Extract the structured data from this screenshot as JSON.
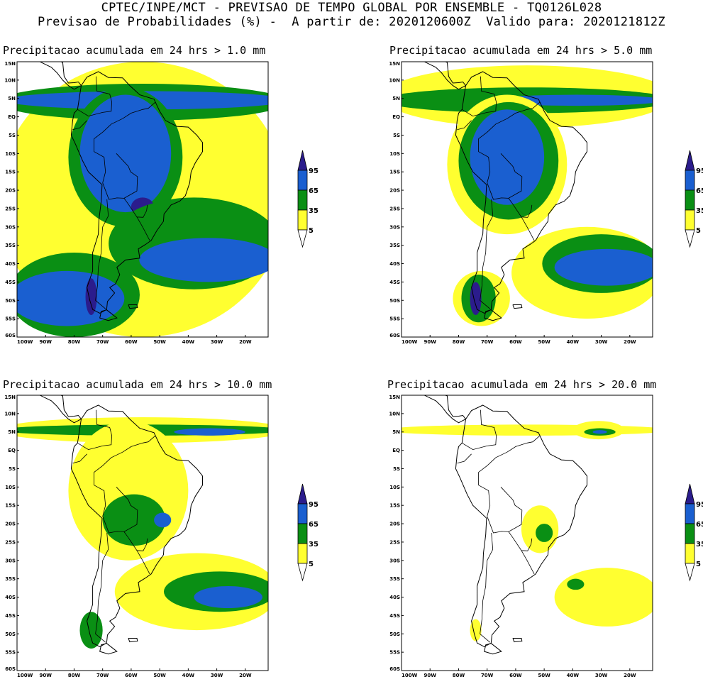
{
  "header": {
    "line1": "CPTEC/INPE/MCT - PREVISAO DE TEMPO GLOBAL POR ENSEMBLE - TQ0126L028",
    "line2": "Previsao de Probabilidades (%) -  A partir de: 2020120600Z  Valido para: 2020121812Z"
  },
  "colors": {
    "c5": "#ffff30",
    "c35": "#0a8f14",
    "c65": "#1a5fd0",
    "c95": "#2b1c8c",
    "land": "#000000"
  },
  "chart_data": [
    {
      "type": "heatmap",
      "title": "Precipitacao acumulada em 24 hrs > 1.0 mm",
      "threshold_mm": 1.0,
      "xlim": [
        -100,
        -12
      ],
      "ylim": [
        -60,
        15
      ],
      "x_ticks": [
        "100W",
        "90W",
        "80W",
        "70W",
        "60W",
        "50W",
        "40W",
        "30W",
        "20W"
      ],
      "y_ticks": [
        "15N",
        "10N",
        "5N",
        "EQ",
        "5S",
        "10S",
        "15S",
        "20S",
        "25S",
        "30S",
        "35S",
        "40S",
        "45S",
        "50S",
        "55S",
        "60S"
      ],
      "legend": [
        "5",
        "35",
        "65",
        "95"
      ],
      "regions": [
        {
          "level": 5,
          "lon": [
            -100,
            -12
          ],
          "lat": [
            -60,
            15
          ]
        },
        {
          "level": 35,
          "lon": [
            -100,
            -12
          ],
          "lat": [
            -1,
            9
          ]
        },
        {
          "level": 65,
          "lon": [
            -98,
            -12
          ],
          "lat": [
            2,
            7
          ]
        },
        {
          "level": 35,
          "lon": [
            -82,
            -42
          ],
          "lat": [
            -30,
            8
          ]
        },
        {
          "level": 65,
          "lon": [
            -78,
            -46
          ],
          "lat": [
            -26,
            6
          ]
        },
        {
          "level": 95,
          "lon": [
            -60,
            -52
          ],
          "lat": [
            -27,
            -22
          ]
        },
        {
          "level": 35,
          "lon": [
            -64,
            -12
          ],
          "lat": [
            -47,
            -22
          ]
        },
        {
          "level": 65,
          "lon": [
            -54,
            -12
          ],
          "lat": [
            -45,
            -33
          ]
        },
        {
          "level": 35,
          "lon": [
            -100,
            -60
          ],
          "lat": [
            -60,
            -37
          ]
        },
        {
          "level": 65,
          "lon": [
            -100,
            -65
          ],
          "lat": [
            -57,
            -42
          ]
        },
        {
          "level": 95,
          "lon": [
            -76,
            -72
          ],
          "lat": [
            -54,
            -44
          ]
        }
      ]
    },
    {
      "type": "heatmap",
      "title": "Precipitacao acumulada em 24 hrs > 5.0 mm",
      "threshold_mm": 5.0,
      "xlim": [
        -100,
        -12
      ],
      "ylim": [
        -60,
        15
      ],
      "x_ticks": [
        "100W",
        "90W",
        "80W",
        "70W",
        "60W",
        "50W",
        "40W",
        "30W",
        "20W"
      ],
      "y_ticks": [
        "15N",
        "10N",
        "5N",
        "EQ",
        "5S",
        "10S",
        "15S",
        "20S",
        "25S",
        "30S",
        "35S",
        "40S",
        "45S",
        "50S",
        "55S",
        "60S"
      ],
      "legend": [
        "5",
        "35",
        "65",
        "95"
      ],
      "regions": [
        {
          "level": 5,
          "lon": [
            -100,
            -12
          ],
          "lat": [
            -3,
            14
          ]
        },
        {
          "level": 35,
          "lon": [
            -100,
            -12
          ],
          "lat": [
            1,
            8
          ]
        },
        {
          "level": 65,
          "lon": [
            -65,
            -12
          ],
          "lat": [
            3,
            6
          ]
        },
        {
          "level": 5,
          "lon": [
            -84,
            -42
          ],
          "lat": [
            -32,
            6
          ]
        },
        {
          "level": 35,
          "lon": [
            -80,
            -45
          ],
          "lat": [
            -28,
            4
          ]
        },
        {
          "level": 65,
          "lon": [
            -76,
            -50
          ],
          "lat": [
            -24,
            2
          ]
        },
        {
          "level": 5,
          "lon": [
            -58,
            -12
          ],
          "lat": [
            -55,
            -30
          ]
        },
        {
          "level": 35,
          "lon": [
            -48,
            -12
          ],
          "lat": [
            -48,
            -32
          ]
        },
        {
          "level": 65,
          "lon": [
            -44,
            -12
          ],
          "lat": [
            -46,
            -36
          ]
        },
        {
          "level": 5,
          "lon": [
            -82,
            -62
          ],
          "lat": [
            -57,
            -42
          ]
        },
        {
          "level": 35,
          "lon": [
            -79,
            -67
          ],
          "lat": [
            -56,
            -43
          ]
        },
        {
          "level": 95,
          "lon": [
            -76,
            -72
          ],
          "lat": [
            -54,
            -45
          ]
        }
      ]
    },
    {
      "type": "heatmap",
      "title": "Precipitacao acumulada em 24 hrs > 10.0 mm",
      "threshold_mm": 10.0,
      "xlim": [
        -100,
        -12
      ],
      "ylim": [
        -60,
        15
      ],
      "x_ticks": [
        "100W",
        "90W",
        "80W",
        "70W",
        "60W",
        "50W",
        "40W",
        "30W",
        "20W"
      ],
      "y_ticks": [
        "15N",
        "10N",
        "5N",
        "EQ",
        "5S",
        "10S",
        "15S",
        "20S",
        "25S",
        "30S",
        "35S",
        "40S",
        "45S",
        "50S",
        "55S",
        "60S"
      ],
      "legend": [
        "5",
        "35",
        "65",
        "95"
      ],
      "regions": [
        {
          "level": 5,
          "lon": [
            -100,
            -12
          ],
          "lat": [
            2,
            9
          ]
        },
        {
          "level": 35,
          "lon": [
            -100,
            -12
          ],
          "lat": [
            4,
            7
          ]
        },
        {
          "level": 65,
          "lon": [
            -45,
            -20
          ],
          "lat": [
            4,
            6
          ]
        },
        {
          "level": 5,
          "lon": [
            -82,
            -40
          ],
          "lat": [
            -30,
            8
          ]
        },
        {
          "level": 35,
          "lon": [
            -70,
            -48
          ],
          "lat": [
            -26,
            -12
          ]
        },
        {
          "level": 65,
          "lon": [
            -52,
            -46
          ],
          "lat": [
            -21,
            -17
          ]
        },
        {
          "level": 5,
          "lon": [
            -62,
            -12
          ],
          "lat": [
            -49,
            -28
          ]
        },
        {
          "level": 35,
          "lon": [
            -46,
            -12
          ],
          "lat": [
            -44,
            -33
          ]
        },
        {
          "level": 65,
          "lon": [
            -38,
            -14
          ],
          "lat": [
            -43,
            -37
          ]
        },
        {
          "level": 35,
          "lon": [
            -78,
            -70
          ],
          "lat": [
            -54,
            -44
          ]
        }
      ]
    },
    {
      "type": "heatmap",
      "title": "Precipitacao acumulada em 24 hrs > 20.0 mm",
      "threshold_mm": 20.0,
      "xlim": [
        -100,
        -12
      ],
      "ylim": [
        -60,
        15
      ],
      "x_ticks": [
        "100W",
        "90W",
        "80W",
        "70W",
        "60W",
        "50W",
        "40W",
        "30W",
        "20W"
      ],
      "y_ticks": [
        "15N",
        "10N",
        "5N",
        "EQ",
        "5S",
        "10S",
        "15S",
        "20S",
        "25S",
        "30S",
        "35S",
        "40S",
        "45S",
        "50S",
        "55S",
        "60S"
      ],
      "legend": [
        "5",
        "35",
        "65",
        "95"
      ],
      "regions": [
        {
          "level": 5,
          "lon": [
            -100,
            -12
          ],
          "lat": [
            4,
            7
          ]
        },
        {
          "level": 5,
          "lon": [
            -40,
            -22
          ],
          "lat": [
            3,
            8
          ]
        },
        {
          "level": 35,
          "lon": [
            -36,
            -25
          ],
          "lat": [
            4,
            6
          ]
        },
        {
          "level": 65,
          "lon": [
            -33,
            -28
          ],
          "lat": [
            4.5,
            5.5
          ]
        },
        {
          "level": 5,
          "lon": [
            -58,
            -45
          ],
          "lat": [
            -28,
            -15
          ]
        },
        {
          "level": 35,
          "lon": [
            -53,
            -47
          ],
          "lat": [
            -25,
            -20
          ]
        },
        {
          "level": 5,
          "lon": [
            -44,
            -12
          ],
          "lat": [
            -48,
            -32
          ]
        },
        {
          "level": 35,
          "lon": [
            -42,
            -36
          ],
          "lat": [
            -38,
            -35
          ]
        },
        {
          "level": 5,
          "lon": [
            -76,
            -72
          ],
          "lat": [
            -52,
            -46
          ]
        }
      ]
    }
  ]
}
